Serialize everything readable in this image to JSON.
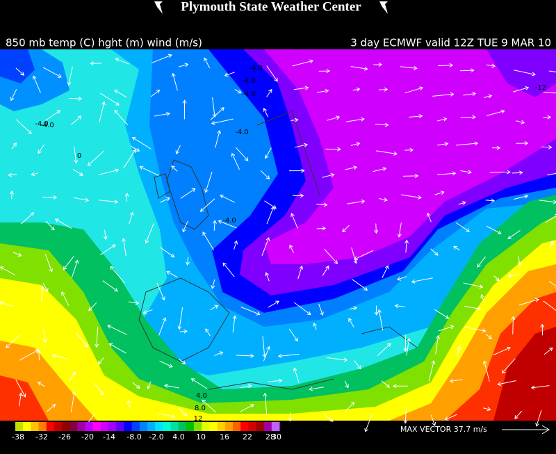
{
  "header": {
    "title": "Plymouth State Weather Center",
    "left_caption": "850 mb temp (C) hght (m) wind (m/s)",
    "right_caption": "3 day ECMWF valid 12Z TUE 9 MAR 10"
  },
  "map": {
    "contour_labels": [
      "-4.0",
      "-4.0",
      "-4.0",
      "-4.0",
      "-4.0",
      "-4.0",
      "-4.0",
      "0",
      "-12",
      "4.0",
      "8.0",
      "12"
    ]
  },
  "colorbar": {
    "labels": [
      "-38",
      "-32",
      "-26",
      "-20",
      "-14",
      "-8.0",
      "-2.0",
      "4.0",
      "10",
      "16",
      "22",
      "28",
      "30"
    ],
    "colors": [
      "#c0e000",
      "#ffff00",
      "#ffc000",
      "#ff8000",
      "#ff0000",
      "#c00000",
      "#900000",
      "#800040",
      "#a000a0",
      "#c000ff",
      "#ff00ff",
      "#d000ff",
      "#a000ff",
      "#6000ff",
      "#0000ff",
      "#0040ff",
      "#0080ff",
      "#00b0ff",
      "#00e0ff",
      "#00ffd0",
      "#00e0a0",
      "#00c060",
      "#00c000",
      "#80e000",
      "#e0ff00",
      "#ffff00",
      "#ffd000",
      "#ffa000",
      "#ff6000",
      "#ff0000",
      "#d00000",
      "#a00000",
      "#a000a0",
      "#c060ff"
    ]
  },
  "footer": {
    "max_vector": "MAX VECTOR  37.7 m/s"
  }
}
